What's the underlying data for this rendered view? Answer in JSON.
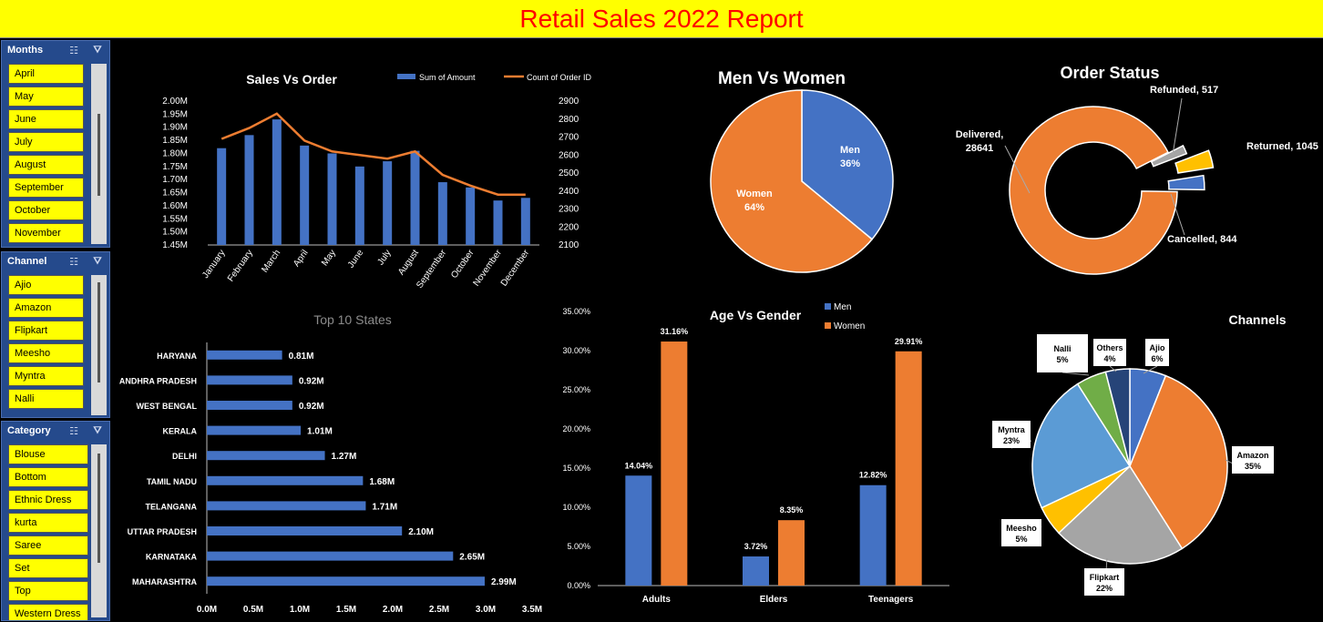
{
  "header": {
    "title": "Retail Sales 2022 Report"
  },
  "slicers": {
    "months": {
      "title": "Months",
      "items": [
        "April",
        "May",
        "June",
        "July",
        "August",
        "September",
        "October",
        "November"
      ]
    },
    "channel": {
      "title": "Channel",
      "items": [
        "Ajio",
        "Amazon",
        "Flipkart",
        "Meesho",
        "Myntra",
        "Nalli"
      ]
    },
    "category": {
      "title": "Category",
      "items": [
        "Blouse",
        "Bottom",
        "Ethnic Dress",
        "kurta",
        "Saree",
        "Set",
        "Top",
        "Western Dress"
      ]
    },
    "icons": {
      "multi_select": "multi-select-icon",
      "clear_filter": "clear-filter-icon"
    }
  },
  "colors": {
    "blue": "#4472c4",
    "orange": "#ed7d31",
    "gray": "#a5a5a5",
    "yellow": "#ffc000",
    "lightblue": "#5b9bd5",
    "green": "#70ad47",
    "navy": "#264478",
    "title_bar": "#ffff00",
    "title_text": "#ff0000"
  },
  "chart_data": [
    {
      "id": "sales_vs_order",
      "type": "bar",
      "title": "Sales Vs Order",
      "categories": [
        "January",
        "February",
        "March",
        "April",
        "May",
        "June",
        "July",
        "August",
        "September",
        "October",
        "November",
        "December"
      ],
      "series": [
        {
          "name": "Sum of Amount",
          "kind": "bar",
          "axis": "left",
          "color": "#4472c4",
          "values": [
            1.82,
            1.87,
            1.93,
            1.83,
            1.8,
            1.75,
            1.77,
            1.81,
            1.69,
            1.67,
            1.62,
            1.63
          ]
        },
        {
          "name": "Count of Order ID",
          "kind": "line",
          "axis": "right",
          "color": "#ed7d31",
          "values": [
            2690,
            2750,
            2830,
            2680,
            2620,
            2600,
            2580,
            2620,
            2490,
            2430,
            2380,
            2380
          ]
        }
      ],
      "y_left_ticks": [
        "2.00M",
        "1.95M",
        "1.90M",
        "1.85M",
        "1.80M",
        "1.75M",
        "1.70M",
        "1.65M",
        "1.60M",
        "1.55M",
        "1.50M",
        "1.45M"
      ],
      "y_right_ticks": [
        "2900",
        "2800",
        "2700",
        "2600",
        "2500",
        "2400",
        "2300",
        "2200",
        "2100"
      ],
      "ylim_left": [
        1.45,
        2.0
      ],
      "ylim_right": [
        2100,
        2900
      ],
      "legend": "top-right"
    },
    {
      "id": "men_vs_women",
      "type": "pie",
      "title": "Men Vs Women",
      "slices": [
        {
          "label": "Men",
          "value": 36,
          "display": "36%",
          "color": "#4472c4"
        },
        {
          "label": "Women",
          "value": 64,
          "display": "64%",
          "color": "#ed7d31"
        }
      ]
    },
    {
      "id": "order_status",
      "type": "pie",
      "title": "Order Status",
      "slices": [
        {
          "label": "Delivered",
          "value": 28641,
          "color": "#ed7d31"
        },
        {
          "label": "Refunded",
          "value": 517,
          "color": "#a5a5a5"
        },
        {
          "label": "Returned",
          "value": 1045,
          "color": "#ffc000"
        },
        {
          "label": "Cancelled",
          "value": 844,
          "color": "#4472c4"
        }
      ],
      "labels": [
        "Delivered,",
        "28641",
        "Refunded, 517",
        "Returned, 1045",
        "Cancelled, 844"
      ]
    },
    {
      "id": "top_10_states",
      "type": "bar",
      "title": "Top 10 States",
      "categories": [
        "HARYANA",
        "ANDHRA PRADESH",
        "WEST BENGAL",
        "KERALA",
        "DELHI",
        "TAMIL NADU",
        "TELANGANA",
        "UTTAR PRADESH",
        "KARNATAKA",
        "MAHARASHTRA"
      ],
      "values": [
        0.81,
        0.92,
        0.92,
        1.01,
        1.27,
        1.68,
        1.71,
        2.1,
        2.65,
        2.99
      ],
      "value_labels": [
        "0.81M",
        "0.92M",
        "0.92M",
        "1.01M",
        "1.27M",
        "1.68M",
        "1.71M",
        "2.10M",
        "2.65M",
        "2.99M"
      ],
      "x_ticks": [
        "0.0M",
        "0.5M",
        "1.0M",
        "1.5M",
        "2.0M",
        "2.5M",
        "3.0M",
        "3.5M"
      ],
      "xlim": [
        0,
        3.5
      ],
      "orientation": "horizontal"
    },
    {
      "id": "age_vs_gender",
      "type": "bar",
      "title": "Age Vs Gender",
      "categories": [
        "Adults",
        "Elders",
        "Teenagers"
      ],
      "series": [
        {
          "name": "Men",
          "color": "#4472c4",
          "values": [
            14.04,
            3.72,
            12.82
          ],
          "labels": [
            "14.04%",
            "3.72%",
            "12.82%"
          ]
        },
        {
          "name": "Women",
          "color": "#ed7d31",
          "values": [
            31.16,
            8.35,
            29.91
          ],
          "labels": [
            "31.16%",
            "8.35%",
            "29.91%"
          ]
        }
      ],
      "y_ticks": [
        "35.00%",
        "30.00%",
        "25.00%",
        "20.00%",
        "15.00%",
        "10.00%",
        "5.00%",
        "0.00%"
      ],
      "ylim": [
        0,
        35
      ],
      "legend": "top"
    },
    {
      "id": "channels",
      "type": "pie",
      "title": "Channels",
      "slices": [
        {
          "label": "Ajio",
          "value": 6,
          "display": "6%",
          "color": "#4472c4"
        },
        {
          "label": "Amazon",
          "value": 35,
          "display": "35%",
          "color": "#ed7d31"
        },
        {
          "label": "Flipkart",
          "value": 22,
          "display": "22%",
          "color": "#a5a5a5"
        },
        {
          "label": "Meesho",
          "value": 5,
          "display": "5%",
          "color": "#ffc000"
        },
        {
          "label": "Myntra",
          "value": 23,
          "display": "23%",
          "color": "#5b9bd5"
        },
        {
          "label": "Nalli",
          "value": 5,
          "display": "5%",
          "color": "#70ad47"
        },
        {
          "label": "Others",
          "value": 4,
          "display": "4%",
          "color": "#264478"
        }
      ]
    }
  ]
}
